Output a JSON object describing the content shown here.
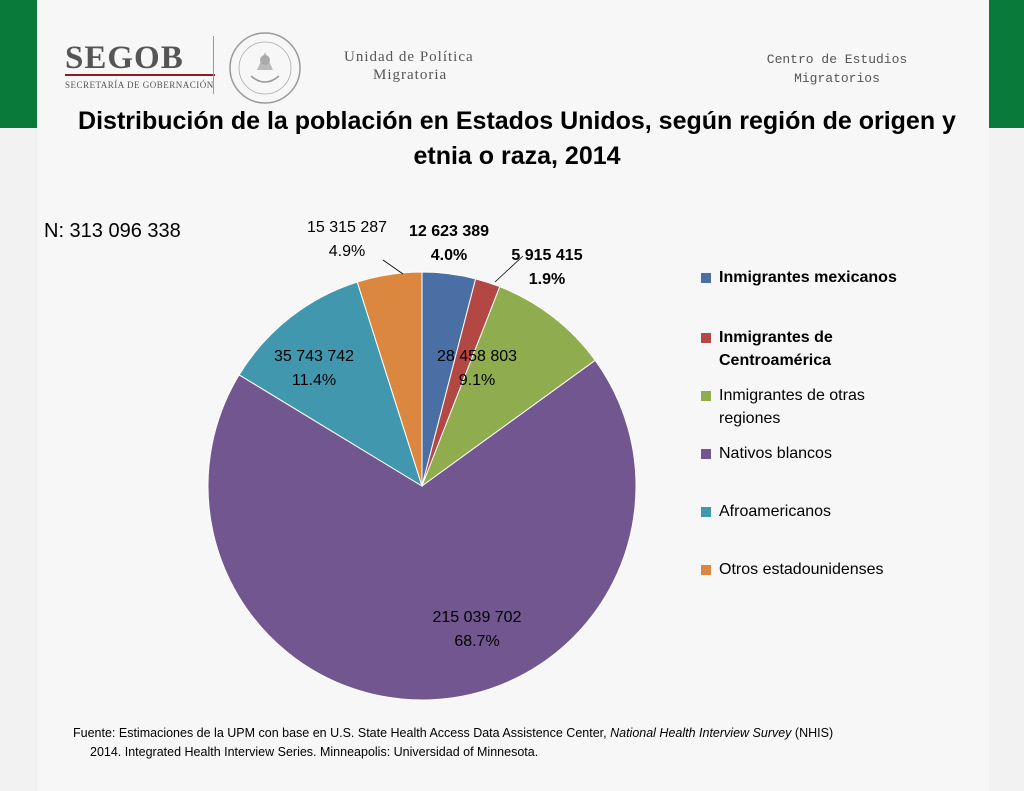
{
  "header": {
    "logo_word": "SEGOB",
    "logo_subtitle": "SECRETARÍA DE GOBERNACIÓN",
    "unit_line1": "Unidad de Política",
    "unit_line2": "Migratoria",
    "center_line1": "Centro de Estudios",
    "center_line2": "Migratorios"
  },
  "colors": {
    "band_green": "#0a7a3a",
    "logo_rule": "#8a1c2c"
  },
  "chart_data": {
    "type": "pie",
    "title": "Distribución de la población en Estados Unidos, según región de origen y etnia o raza, 2014",
    "n_label": "N: 313 096 338",
    "legend_position": "right",
    "slices": [
      {
        "name": "Inmigrantes mexicanos",
        "value": 12623389,
        "value_label": "12 623 389",
        "percent_label": "4.0%",
        "color": "#4a6fa5",
        "bold": true
      },
      {
        "name": "Inmigrantes de Centroamérica",
        "value": 5915415,
        "value_label": "5 915 415",
        "percent_label": "1.9%",
        "color": "#b24744",
        "bold": true
      },
      {
        "name": "Inmigrantes de otras regiones",
        "value": 28458803,
        "value_label": "28 458 803",
        "percent_label": "9.1%",
        "color": "#8fac4e",
        "bold": false
      },
      {
        "name": "Nativos blancos",
        "value": 215039702,
        "value_label": "215 039 702",
        "percent_label": "68.7%",
        "color": "#71568f",
        "bold": false
      },
      {
        "name": "Afroamericanos",
        "value": 35743742,
        "value_label": "35 743 742",
        "percent_label": "11.4%",
        "color": "#4198ae",
        "bold": false
      },
      {
        "name": "Otros estadounidenses",
        "value": 15315287,
        "value_label": "15 315 287",
        "percent_label": "4.9%",
        "color": "#db8740",
        "bold": false
      }
    ]
  },
  "legend_lines": [
    [
      "Inmigrantes mexicanos"
    ],
    [
      "Inmigrantes de",
      "Centroamérica"
    ],
    [
      "Inmigrantes de otras",
      "regiones"
    ],
    [
      "Nativos blancos"
    ],
    [
      "Afroamericanos"
    ],
    [
      "Otros estadounidenses"
    ]
  ],
  "source": {
    "line1_pre": "Fuente: Estimaciones de la UPM con base en U.S. State Health Access Data Assistence Center, ",
    "line1_italic": "National Health Interview Survey",
    "line1_post": " (NHIS)",
    "line2": "2014. Integrated Health Interview Series. Minneapolis: Universidad of Minnesota."
  }
}
